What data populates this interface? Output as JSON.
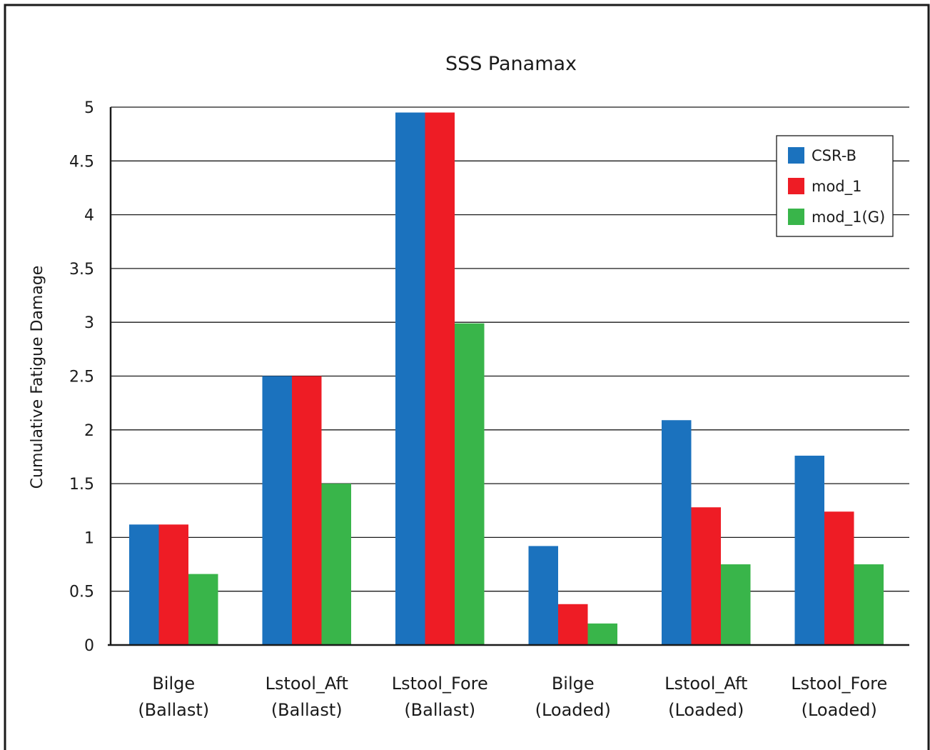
{
  "chart_data": {
    "type": "bar",
    "title": "SSS Panamax",
    "xlabel": "",
    "ylabel": "Cumulative Fatigue Damage",
    "ylim": [
      0,
      5
    ],
    "yticks": [
      "0",
      "0.5",
      "1",
      "1.5",
      "2",
      "2.5",
      "3",
      "3.5",
      "4",
      "4.5",
      "5"
    ],
    "grid": true,
    "legend_position": "top-right",
    "categories": [
      [
        "Bilge",
        "(Ballast)"
      ],
      [
        "Lstool_Aft",
        "(Ballast)"
      ],
      [
        "Lstool_Fore",
        "(Ballast)"
      ],
      [
        "Bilge",
        "(Loaded)"
      ],
      [
        "Lstool_Aft",
        "(Loaded)"
      ],
      [
        "Lstool_Fore",
        "(Loaded)"
      ]
    ],
    "series": [
      {
        "name": "CSR-B",
        "color": "#1b72be",
        "values": [
          1.12,
          2.5,
          4.95,
          0.92,
          2.09,
          1.76
        ]
      },
      {
        "name": "mod_1",
        "color": "#ee1c25",
        "values": [
          1.12,
          2.5,
          4.95,
          0.38,
          1.28,
          1.24
        ]
      },
      {
        "name": "mod_1(G)",
        "color": "#39b54a",
        "values": [
          0.66,
          1.5,
          2.99,
          0.2,
          0.75,
          0.75
        ]
      }
    ]
  }
}
